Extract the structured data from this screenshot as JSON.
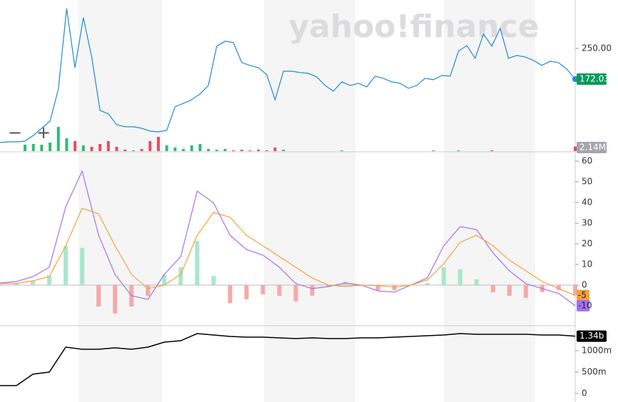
{
  "chart_data": [
    {
      "type": "line",
      "watermark": "yahoo!finance",
      "controls": [
        "−",
        "+"
      ],
      "series": [
        {
          "color": "#1e8ad6",
          "label_color": "#0a9a5e",
          "last_label": "172.03",
          "values": [
            10.9,
            12.7,
            12.7,
            14.5,
            29.0,
            47.1,
            65.3,
            146.9,
            351.7,
            201.2,
            328.2,
            228.4,
            92.5,
            83.4,
            56.2,
            50.8,
            50.8,
            47.1,
            39.9,
            38.1,
            41.7,
            101.5,
            110.6,
            119.7,
            134.2,
            155.9,
            255.6,
            268.3,
            264.7,
            213.9,
            206.7,
            201.2,
            183.1,
            119.7,
            192.2,
            192.2,
            188.6,
            186.7,
            177.7,
            155.9,
            141.4,
            165.0,
            155.9,
            161.4,
            152.3,
            179.5,
            174.0,
            165.0,
            161.4,
            148.7,
            155.9,
            174.0,
            170.4,
            181.3,
            179.5,
            242.9,
            257.5,
            224.8,
            286.5,
            255.6,
            301.0,
            224.8,
            232.1,
            228.4,
            219.4,
            206.7,
            217.6,
            213.9,
            197.6,
            172.03
          ]
        }
      ],
      "ylim": [
        0,
        373
      ],
      "yticks": [
        {
          "value": 250,
          "label": "250.00"
        }
      ],
      "volume": {
        "up_color": "#2bbd76",
        "down_color": "#e94b63",
        "label_color": "#a3a7ad",
        "last_label": "2.14M",
        "ylim": [
          0,
          20000000
        ],
        "values": [
          null,
          null,
          null,
          3000000,
          3333000,
          3000000,
          4000000,
          11333000,
          6000000,
          4667000,
          2667000,
          2000000,
          3333000,
          4667000,
          2000000,
          667000,
          333000,
          1000000,
          4667000,
          6667000,
          2667000,
          1667000,
          1000000,
          2667000,
          3333000,
          1000000,
          667000,
          1000000,
          333000,
          667000,
          333000,
          667000,
          333000,
          1667000,
          667000,
          null,
          null,
          null,
          null,
          null,
          null,
          333000,
          null,
          null,
          null,
          null,
          null,
          null,
          null,
          null,
          null,
          null,
          333000,
          null,
          null,
          333000,
          null,
          null,
          null,
          333000,
          null,
          null,
          null,
          null,
          null,
          null,
          null,
          null,
          null,
          2140000
        ]
      }
    },
    {
      "type": "macd",
      "series": [
        {
          "color": "#a66ef2",
          "values": [
            1.0,
            1.7,
            4.1,
            8.6,
            37.9,
            55.2,
            24.1,
            5.2,
            -5.2,
            -6.9,
            5.2,
            13.8,
            45.5,
            39.7,
            24.1,
            17.2,
            14.5,
            8.6,
            0.7,
            -1.7,
            -0.7,
            1.0,
            0,
            -2.8,
            -3.4,
            0,
            3.4,
            19.0,
            28.3,
            26.9,
            15.5,
            6.9,
            0.7,
            -1.7,
            -4.1,
            -10
          ]
        },
        {
          "color": "#f5a13e",
          "values": [
            0.7,
            0.7,
            2.1,
            4.1,
            19.0,
            37.2,
            34.5,
            19.0,
            5.2,
            -1.7,
            0,
            5.2,
            24.1,
            35.2,
            32.8,
            24.1,
            19.0,
            13.8,
            8.6,
            3.4,
            0,
            -0.7,
            0,
            -0.3,
            -1.0,
            0,
            2.4,
            10.3,
            20.7,
            24.1,
            19.0,
            12.1,
            6.9,
            1.7,
            -1.7,
            -5
          ]
        }
      ],
      "histogram": {
        "pos_color": "#a7e8c9",
        "neg_color": "#f5a9a9",
        "values": [
          0.3,
          1.0,
          2.0,
          4.5,
          18.9,
          18.0,
          -10.4,
          -13.8,
          -10.4,
          -5.2,
          5.2,
          8.6,
          21.4,
          4.5,
          -8.7,
          -6.9,
          -4.5,
          -5.2,
          -7.9,
          -5.1,
          -0.7,
          1.7,
          0,
          -2.5,
          -2.4,
          0,
          1.0,
          8.7,
          7.6,
          2.8,
          -3.5,
          -5.2,
          -6.2,
          -3.4,
          -2.4,
          -5
        ]
      },
      "ylim": [
        -19,
        62.8
      ],
      "yticks": [
        0,
        10,
        20,
        30,
        40,
        50,
        60
      ]
    },
    {
      "type": "line",
      "series": [
        {
          "color": "#000000",
          "label_color": "#000000",
          "last_label": "1.34b",
          "values": [
            183000000,
            183000000,
            450000000,
            500000000,
            1083000000,
            1033000000,
            1033000000,
            1067000000,
            1033000000,
            1083000000,
            1200000000,
            1233000000,
            1400000000,
            1367000000,
            1333000000,
            1317000000,
            1317000000,
            1300000000,
            1283000000,
            1300000000,
            1283000000,
            1283000000,
            1300000000,
            1300000000,
            1317000000,
            1333000000,
            1350000000,
            1367000000,
            1400000000,
            1383000000,
            1383000000,
            1383000000,
            1383000000,
            1367000000,
            1367000000,
            1340000000
          ]
        }
      ],
      "ylim": [
        -200000000,
        1533000000
      ],
      "yticks": [
        0,
        {
          "value": 500000000,
          "label": "500m"
        },
        {
          "value": 1000000000,
          "label": "1000m"
        }
      ]
    }
  ]
}
